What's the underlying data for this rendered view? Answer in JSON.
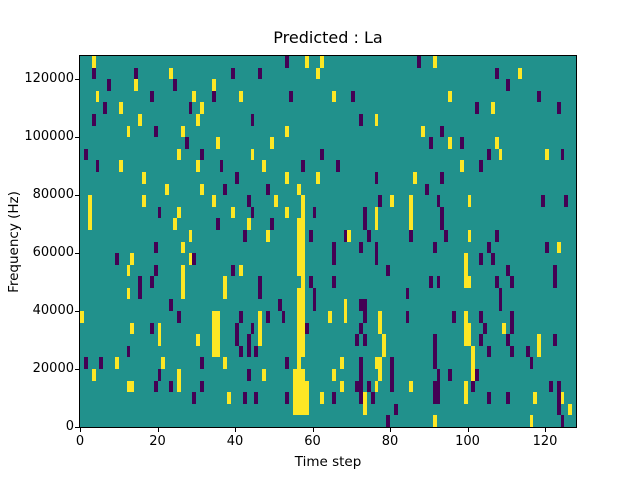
{
  "figure": {
    "background": "#ffffff"
  },
  "chart_data": {
    "type": "heatmap",
    "title": "Predicted : La",
    "xlabel": "Time step",
    "ylabel": "Frequency (Hz)",
    "x_ticks": [
      0,
      20,
      40,
      60,
      80,
      100,
      120
    ],
    "y_ticks": [
      0,
      20000,
      40000,
      60000,
      80000,
      100000,
      120000
    ],
    "x_range": [
      0,
      128
    ],
    "y_range": [
      0,
      128000
    ],
    "grid": {
      "cols": 128,
      "rows": 32,
      "hz_per_row": 4000,
      "time_per_col": 1
    },
    "colormap": "viridis",
    "colors": {
      "background": "#21918c",
      "pos": "#fde725",
      "neg": "#440154",
      "axis": "#000000",
      "text": "#000000"
    },
    "value_map": {
      "1": "yellow (high)",
      "-1": "dark purple (low)",
      "0": "teal (zero background)"
    },
    "cells_format": "[time_step, row_from_top, value]; freq_band_top_hz = 128000 - 4000*row_from_top",
    "cells": [
      [
        3,
        0,
        1
      ],
      [
        53,
        0,
        -1
      ],
      [
        58,
        0,
        1
      ],
      [
        62,
        0,
        1
      ],
      [
        87,
        0,
        -1
      ],
      [
        91,
        0,
        1
      ],
      [
        3,
        1,
        -1
      ],
      [
        14,
        1,
        -1
      ],
      [
        23,
        1,
        1
      ],
      [
        39,
        1,
        -1
      ],
      [
        46,
        1,
        -1
      ],
      [
        61,
        1,
        1
      ],
      [
        107,
        1,
        -1
      ],
      [
        113,
        1,
        1
      ],
      [
        7,
        2,
        -1
      ],
      [
        14,
        2,
        1
      ],
      [
        24,
        2,
        -1
      ],
      [
        34,
        2,
        1
      ],
      [
        110,
        2,
        -1
      ],
      [
        4,
        3,
        1
      ],
      [
        18,
        3,
        -1
      ],
      [
        29,
        3,
        1
      ],
      [
        34,
        3,
        -1
      ],
      [
        41,
        3,
        1
      ],
      [
        54,
        3,
        -1
      ],
      [
        65,
        3,
        1
      ],
      [
        70,
        3,
        -1
      ],
      [
        95,
        3,
        1
      ],
      [
        118,
        3,
        -1
      ],
      [
        6,
        4,
        -1
      ],
      [
        10,
        4,
        1
      ],
      [
        28,
        4,
        -1
      ],
      [
        31,
        4,
        1
      ],
      [
        102,
        4,
        -1
      ],
      [
        106,
        4,
        1
      ],
      [
        123,
        4,
        -1
      ],
      [
        3,
        5,
        -1
      ],
      [
        15,
        5,
        1
      ],
      [
        30,
        5,
        1
      ],
      [
        44,
        5,
        -1
      ],
      [
        72,
        5,
        -1
      ],
      [
        76,
        5,
        1
      ],
      [
        12,
        6,
        1
      ],
      [
        19,
        6,
        -1
      ],
      [
        26,
        6,
        1
      ],
      [
        53,
        6,
        1
      ],
      [
        88,
        6,
        1
      ],
      [
        93,
        6,
        -1
      ],
      [
        27,
        7,
        -1
      ],
      [
        35,
        7,
        1
      ],
      [
        49,
        7,
        1
      ],
      [
        90,
        7,
        -1
      ],
      [
        95,
        7,
        1
      ],
      [
        98,
        7,
        -1
      ],
      [
        107,
        7,
        1
      ],
      [
        1,
        8,
        -1
      ],
      [
        25,
        8,
        1
      ],
      [
        31,
        8,
        -1
      ],
      [
        44,
        8,
        1
      ],
      [
        62,
        8,
        -1
      ],
      [
        105,
        8,
        -1
      ],
      [
        108,
        8,
        1
      ],
      [
        120,
        8,
        1
      ],
      [
        124,
        8,
        -1
      ],
      [
        4,
        9,
        -1
      ],
      [
        10,
        9,
        1
      ],
      [
        30,
        9,
        1
      ],
      [
        36,
        9,
        -1
      ],
      [
        47,
        9,
        1
      ],
      [
        57,
        9,
        -1
      ],
      [
        66,
        9,
        -1
      ],
      [
        98,
        9,
        1
      ],
      [
        103,
        9,
        -1
      ],
      [
        16,
        10,
        1
      ],
      [
        40,
        10,
        -1
      ],
      [
        53,
        10,
        1
      ],
      [
        61,
        10,
        1
      ],
      [
        76,
        10,
        -1
      ],
      [
        86,
        10,
        1
      ],
      [
        93,
        10,
        -1
      ],
      [
        22,
        11,
        1
      ],
      [
        31,
        11,
        1
      ],
      [
        37,
        11,
        -1
      ],
      [
        48,
        11,
        -1
      ],
      [
        56,
        11,
        1
      ],
      [
        89,
        11,
        -1
      ],
      [
        2,
        12,
        1
      ],
      [
        16,
        12,
        1
      ],
      [
        34,
        12,
        1
      ],
      [
        43,
        12,
        -1
      ],
      [
        50,
        12,
        1
      ],
      [
        57,
        12,
        1
      ],
      [
        77,
        12,
        -1
      ],
      [
        80,
        12,
        1
      ],
      [
        85,
        12,
        1
      ],
      [
        92,
        12,
        -1
      ],
      [
        100,
        12,
        1
      ],
      [
        119,
        12,
        -1
      ],
      [
        125,
        12,
        -1
      ],
      [
        2,
        13,
        1
      ],
      [
        20,
        13,
        -1
      ],
      [
        25,
        13,
        1
      ],
      [
        39,
        13,
        1
      ],
      [
        44,
        13,
        -1
      ],
      [
        53,
        13,
        1
      ],
      [
        57,
        13,
        1
      ],
      [
        60,
        13,
        -1
      ],
      [
        73,
        13,
        -1
      ],
      [
        76,
        13,
        1
      ],
      [
        85,
        13,
        1
      ],
      [
        93,
        13,
        -1
      ],
      [
        2,
        14,
        1
      ],
      [
        24,
        14,
        1
      ],
      [
        35,
        14,
        -1
      ],
      [
        43,
        14,
        1
      ],
      [
        49,
        14,
        -1
      ],
      [
        56,
        14,
        1
      ],
      [
        57,
        14,
        1
      ],
      [
        73,
        14,
        -1
      ],
      [
        76,
        14,
        1
      ],
      [
        85,
        14,
        1
      ],
      [
        93,
        14,
        -1
      ],
      [
        28,
        15,
        1
      ],
      [
        42,
        15,
        -1
      ],
      [
        48,
        15,
        1
      ],
      [
        56,
        15,
        1
      ],
      [
        57,
        15,
        1
      ],
      [
        59,
        15,
        -1
      ],
      [
        68,
        15,
        -1
      ],
      [
        69,
        15,
        1
      ],
      [
        74,
        15,
        -1
      ],
      [
        85,
        15,
        -1
      ],
      [
        94,
        15,
        -1
      ],
      [
        100,
        15,
        1
      ],
      [
        107,
        15,
        -1
      ],
      [
        19,
        16,
        -1
      ],
      [
        26,
        16,
        1
      ],
      [
        56,
        16,
        1
      ],
      [
        57,
        16,
        1
      ],
      [
        65,
        16,
        -1
      ],
      [
        72,
        16,
        -1
      ],
      [
        76,
        16,
        -1
      ],
      [
        91,
        16,
        -1
      ],
      [
        105,
        16,
        -1
      ],
      [
        120,
        16,
        -1
      ],
      [
        123,
        16,
        1
      ],
      [
        9,
        17,
        -1
      ],
      [
        13,
        17,
        1
      ],
      [
        28,
        17,
        1
      ],
      [
        29,
        17,
        -1
      ],
      [
        56,
        17,
        1
      ],
      [
        57,
        17,
        1
      ],
      [
        65,
        17,
        -1
      ],
      [
        76,
        17,
        -1
      ],
      [
        99,
        17,
        1
      ],
      [
        103,
        17,
        -1
      ],
      [
        106,
        17,
        -1
      ],
      [
        12,
        18,
        1
      ],
      [
        19,
        18,
        -1
      ],
      [
        26,
        18,
        1
      ],
      [
        39,
        18,
        -1
      ],
      [
        41,
        18,
        1
      ],
      [
        56,
        18,
        1
      ],
      [
        57,
        18,
        1
      ],
      [
        79,
        18,
        -1
      ],
      [
        99,
        18,
        1
      ],
      [
        110,
        18,
        -1
      ],
      [
        122,
        18,
        -1
      ],
      [
        15,
        19,
        -1
      ],
      [
        18,
        19,
        -1
      ],
      [
        26,
        19,
        1
      ],
      [
        37,
        19,
        1
      ],
      [
        46,
        19,
        -1
      ],
      [
        57,
        19,
        1
      ],
      [
        59,
        19,
        -1
      ],
      [
        65,
        19,
        -1
      ],
      [
        90,
        19,
        -1
      ],
      [
        92,
        19,
        -1
      ],
      [
        99,
        19,
        1
      ],
      [
        100,
        19,
        1
      ],
      [
        107,
        19,
        -1
      ],
      [
        111,
        19,
        -1
      ],
      [
        122,
        19,
        -1
      ],
      [
        12,
        20,
        1
      ],
      [
        15,
        20,
        -1
      ],
      [
        26,
        20,
        1
      ],
      [
        37,
        20,
        1
      ],
      [
        46,
        20,
        -1
      ],
      [
        56,
        20,
        1
      ],
      [
        57,
        20,
        1
      ],
      [
        60,
        20,
        -1
      ],
      [
        84,
        20,
        -1
      ],
      [
        108,
        20,
        -1
      ],
      [
        23,
        21,
        -1
      ],
      [
        51,
        21,
        -1
      ],
      [
        56,
        21,
        1
      ],
      [
        57,
        21,
        1
      ],
      [
        60,
        21,
        -1
      ],
      [
        68,
        21,
        1
      ],
      [
        72,
        21,
        -1
      ],
      [
        73,
        21,
        -1
      ],
      [
        108,
        21,
        -1
      ],
      [
        0,
        22,
        1
      ],
      [
        25,
        22,
        -1
      ],
      [
        34,
        22,
        1
      ],
      [
        35,
        22,
        1
      ],
      [
        41,
        22,
        -1
      ],
      [
        46,
        22,
        1
      ],
      [
        48,
        22,
        -1
      ],
      [
        52,
        22,
        -1
      ],
      [
        56,
        22,
        1
      ],
      [
        57,
        22,
        1
      ],
      [
        64,
        22,
        1
      ],
      [
        68,
        22,
        1
      ],
      [
        73,
        22,
        -1
      ],
      [
        77,
        22,
        1
      ],
      [
        84,
        22,
        -1
      ],
      [
        96,
        22,
        -1
      ],
      [
        99,
        22,
        1
      ],
      [
        103,
        22,
        -1
      ],
      [
        111,
        22,
        -1
      ],
      [
        13,
        23,
        1
      ],
      [
        18,
        23,
        -1
      ],
      [
        20,
        23,
        1
      ],
      [
        34,
        23,
        1
      ],
      [
        35,
        23,
        1
      ],
      [
        40,
        23,
        -1
      ],
      [
        44,
        23,
        -1
      ],
      [
        46,
        23,
        1
      ],
      [
        56,
        23,
        1
      ],
      [
        57,
        23,
        1
      ],
      [
        58,
        23,
        -1
      ],
      [
        72,
        23,
        -1
      ],
      [
        77,
        23,
        1
      ],
      [
        99,
        23,
        1
      ],
      [
        100,
        23,
        1
      ],
      [
        104,
        23,
        -1
      ],
      [
        109,
        23,
        1
      ],
      [
        111,
        23,
        -1
      ],
      [
        20,
        24,
        1
      ],
      [
        30,
        24,
        1
      ],
      [
        34,
        24,
        1
      ],
      [
        35,
        24,
        1
      ],
      [
        40,
        24,
        -1
      ],
      [
        43,
        24,
        -1
      ],
      [
        46,
        24,
        1
      ],
      [
        56,
        24,
        1
      ],
      [
        57,
        24,
        1
      ],
      [
        71,
        24,
        -1
      ],
      [
        73,
        24,
        -1
      ],
      [
        78,
        24,
        1
      ],
      [
        91,
        24,
        -1
      ],
      [
        99,
        24,
        1
      ],
      [
        100,
        24,
        1
      ],
      [
        103,
        24,
        -1
      ],
      [
        110,
        24,
        -1
      ],
      [
        118,
        24,
        1
      ],
      [
        122,
        24,
        -1
      ],
      [
        12,
        25,
        -1
      ],
      [
        34,
        25,
        1
      ],
      [
        35,
        25,
        1
      ],
      [
        41,
        25,
        -1
      ],
      [
        43,
        25,
        -1
      ],
      [
        45,
        25,
        -1
      ],
      [
        56,
        25,
        1
      ],
      [
        57,
        25,
        1
      ],
      [
        78,
        25,
        1
      ],
      [
        91,
        25,
        -1
      ],
      [
        101,
        25,
        1
      ],
      [
        105,
        25,
        -1
      ],
      [
        111,
        25,
        -1
      ],
      [
        115,
        25,
        -1
      ],
      [
        118,
        25,
        1
      ],
      [
        1,
        26,
        -1
      ],
      [
        5,
        26,
        -1
      ],
      [
        9,
        26,
        1
      ],
      [
        21,
        26,
        1
      ],
      [
        31,
        26,
        -1
      ],
      [
        37,
        26,
        1
      ],
      [
        53,
        26,
        -1
      ],
      [
        56,
        26,
        1
      ],
      [
        67,
        26,
        1
      ],
      [
        72,
        26,
        -1
      ],
      [
        76,
        26,
        1
      ],
      [
        77,
        26,
        1
      ],
      [
        80,
        26,
        -1
      ],
      [
        91,
        26,
        -1
      ],
      [
        101,
        26,
        1
      ],
      [
        116,
        26,
        -1
      ],
      [
        3,
        27,
        1
      ],
      [
        20,
        27,
        -1
      ],
      [
        25,
        27,
        1
      ],
      [
        43,
        27,
        -1
      ],
      [
        47,
        27,
        1
      ],
      [
        55,
        27,
        1
      ],
      [
        56,
        27,
        1
      ],
      [
        57,
        27,
        1
      ],
      [
        65,
        27,
        1
      ],
      [
        72,
        27,
        -1
      ],
      [
        77,
        27,
        1
      ],
      [
        80,
        27,
        -1
      ],
      [
        92,
        27,
        -1
      ],
      [
        95,
        27,
        -1
      ],
      [
        101,
        27,
        1
      ],
      [
        102,
        27,
        -1
      ],
      [
        12,
        28,
        1
      ],
      [
        13,
        28,
        1
      ],
      [
        19,
        28,
        -1
      ],
      [
        23,
        28,
        -1
      ],
      [
        25,
        28,
        1
      ],
      [
        31,
        28,
        -1
      ],
      [
        55,
        28,
        1
      ],
      [
        56,
        28,
        1
      ],
      [
        57,
        28,
        1
      ],
      [
        58,
        28,
        1
      ],
      [
        67,
        28,
        1
      ],
      [
        71,
        28,
        -1
      ],
      [
        72,
        28,
        -1
      ],
      [
        74,
        28,
        -1
      ],
      [
        76,
        28,
        1
      ],
      [
        80,
        28,
        -1
      ],
      [
        85,
        28,
        1
      ],
      [
        91,
        28,
        -1
      ],
      [
        92,
        28,
        -1
      ],
      [
        99,
        28,
        1
      ],
      [
        101,
        28,
        -1
      ],
      [
        121,
        28,
        -1
      ],
      [
        123,
        28,
        -1
      ],
      [
        29,
        29,
        -1
      ],
      [
        38,
        29,
        1
      ],
      [
        42,
        29,
        -1
      ],
      [
        45,
        29,
        -1
      ],
      [
        53,
        29,
        -1
      ],
      [
        55,
        29,
        1
      ],
      [
        56,
        29,
        1
      ],
      [
        57,
        29,
        1
      ],
      [
        58,
        29,
        1
      ],
      [
        62,
        29,
        1
      ],
      [
        65,
        29,
        -1
      ],
      [
        72,
        29,
        -1
      ],
      [
        73,
        29,
        1
      ],
      [
        75,
        29,
        -1
      ],
      [
        91,
        29,
        -1
      ],
      [
        92,
        29,
        -1
      ],
      [
        99,
        29,
        1
      ],
      [
        105,
        29,
        -1
      ],
      [
        110,
        29,
        -1
      ],
      [
        117,
        29,
        1
      ],
      [
        123,
        29,
        -1
      ],
      [
        124,
        29,
        1
      ],
      [
        55,
        30,
        1
      ],
      [
        56,
        30,
        1
      ],
      [
        57,
        30,
        1
      ],
      [
        58,
        30,
        1
      ],
      [
        73,
        30,
        1
      ],
      [
        81,
        30,
        -1
      ],
      [
        123,
        30,
        -1
      ],
      [
        126,
        30,
        1
      ],
      [
        79,
        31,
        -1
      ],
      [
        91,
        31,
        1
      ],
      [
        116,
        31,
        1
      ],
      [
        124,
        31,
        -1
      ]
    ]
  }
}
